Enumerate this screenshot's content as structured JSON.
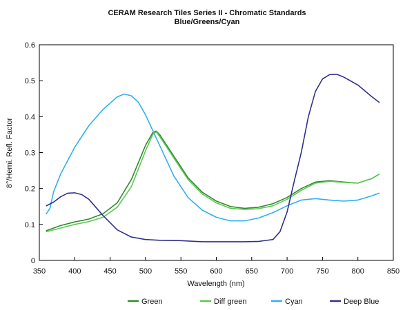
{
  "chart_data": {
    "type": "line",
    "title": "CERAM Research Tiles Series II - Chromatic Standards",
    "subtitle": "Blue/Greens/Cyan",
    "xlabel": "Wavelength (nm)",
    "ylabel": "8°/Hemi. Refl. Factor",
    "xlim": [
      350,
      850
    ],
    "ylim": [
      0,
      0.6
    ],
    "xticks": [
      "350",
      "400",
      "450",
      "500",
      "550",
      "600",
      "650",
      "700",
      "750",
      "800",
      "850"
    ],
    "yticks": [
      "0",
      "0.1",
      "0.2",
      "0.3",
      "0.4",
      "0.5",
      "0.6"
    ],
    "grid": false,
    "legend_position": "bottom",
    "series": [
      {
        "name": "Green",
        "color": "#2e8b2e",
        "x": [
          360,
          380,
          400,
          420,
          440,
          460,
          480,
          500,
          510,
          515,
          520,
          540,
          560,
          580,
          600,
          620,
          640,
          660,
          680,
          700,
          720,
          740,
          760,
          780,
          800,
          820,
          830
        ],
        "y": [
          0.083,
          0.097,
          0.107,
          0.115,
          0.13,
          0.16,
          0.225,
          0.32,
          0.355,
          0.36,
          0.35,
          0.29,
          0.23,
          0.19,
          0.165,
          0.15,
          0.145,
          0.148,
          0.158,
          0.175,
          0.2,
          0.218,
          0.222,
          0.218,
          0.215,
          0.228,
          0.24
        ]
      },
      {
        "name": "Diff green",
        "color": "#5bc850",
        "x": [
          360,
          380,
          400,
          420,
          440,
          460,
          480,
          500,
          510,
          515,
          520,
          540,
          560,
          580,
          600,
          620,
          640,
          660,
          680,
          700,
          720,
          740,
          760,
          780,
          800,
          820,
          830
        ],
        "y": [
          0.08,
          0.09,
          0.1,
          0.108,
          0.12,
          0.148,
          0.205,
          0.305,
          0.35,
          0.358,
          0.345,
          0.285,
          0.225,
          0.185,
          0.16,
          0.145,
          0.142,
          0.144,
          0.152,
          0.17,
          0.195,
          0.215,
          0.22,
          0.217,
          0.215,
          0.228,
          0.24
        ]
      },
      {
        "name": "Cyan",
        "color": "#2fb0f0",
        "x": [
          360,
          365,
          370,
          380,
          400,
          420,
          440,
          460,
          470,
          480,
          490,
          500,
          520,
          540,
          560,
          580,
          600,
          620,
          640,
          660,
          680,
          700,
          720,
          740,
          760,
          780,
          800,
          820,
          830
        ],
        "y": [
          0.13,
          0.145,
          0.19,
          0.24,
          0.315,
          0.375,
          0.42,
          0.455,
          0.463,
          0.458,
          0.44,
          0.405,
          0.32,
          0.235,
          0.175,
          0.14,
          0.12,
          0.11,
          0.11,
          0.118,
          0.133,
          0.152,
          0.168,
          0.172,
          0.168,
          0.165,
          0.168,
          0.18,
          0.187
        ]
      },
      {
        "name": "Deep Blue",
        "color": "#303090",
        "x": [
          360,
          370,
          380,
          390,
          400,
          410,
          420,
          440,
          460,
          480,
          500,
          520,
          550,
          580,
          600,
          620,
          640,
          660,
          680,
          690,
          700,
          710,
          720,
          730,
          740,
          750,
          760,
          770,
          780,
          800,
          820,
          830
        ],
        "y": [
          0.152,
          0.162,
          0.177,
          0.187,
          0.188,
          0.183,
          0.17,
          0.125,
          0.085,
          0.065,
          0.058,
          0.056,
          0.055,
          0.052,
          0.052,
          0.052,
          0.052,
          0.053,
          0.058,
          0.08,
          0.135,
          0.22,
          0.3,
          0.4,
          0.47,
          0.505,
          0.517,
          0.518,
          0.51,
          0.488,
          0.455,
          0.44
        ]
      }
    ]
  }
}
